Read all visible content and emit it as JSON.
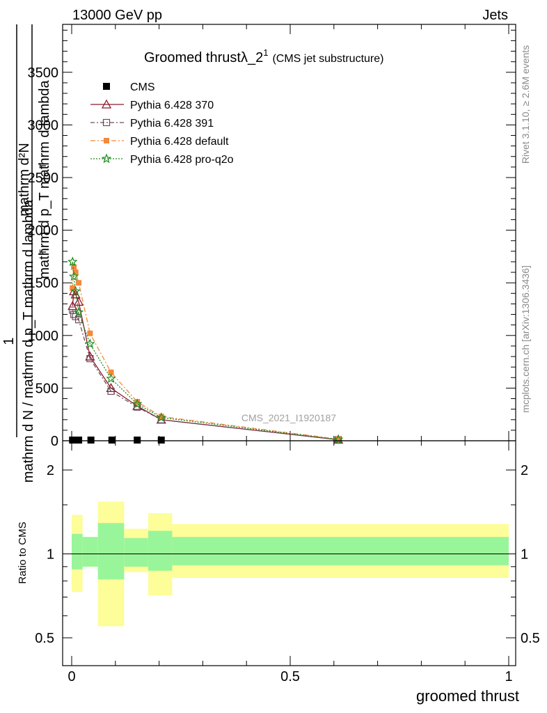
{
  "header": {
    "left": "13000 GeV pp",
    "right": "Jets"
  },
  "side_labels": {
    "rivet": "Rivet 3.1.10, ≥ 2.6M events",
    "mcplots": "mcplots.cern.ch [arXiv:1306.3436]"
  },
  "colors": {
    "cms": "#000000",
    "p370": "#8b1a2b",
    "p391": "#6e4a5a",
    "pdefault": "#f5883a",
    "pq2o": "#1e8c1e",
    "band_inner": "#99f599",
    "band_outer": "#fdfd99",
    "watermark": "#a0a0a0"
  },
  "chart_data": [
    {
      "type": "line",
      "title_main": "Groomed thrustλ_2",
      "title_sup": "1",
      "title_sub": "(CMS jet substructure)",
      "watermark": "CMS_2021_I1920187",
      "ylabel_numer": "mathrm d²N",
      "ylabel_denom": "mathrm d p_T mathrm d lambda",
      "ylabel_a": "mathrm d N / mathrm d p_T mathrm d lambda",
      "ylabel_b": "1",
      "ylabel_sub": "T",
      "ylabel_extra": "mathrm d p_T mathrm d lambda",
      "xlim": [
        0,
        1
      ],
      "ylim": [
        0,
        3900
      ],
      "yticks": [
        0,
        500,
        1000,
        1500,
        2000,
        2500,
        3000,
        3500
      ],
      "ytick_labels": [
        "0",
        "500",
        "1000",
        "1500",
        "2000",
        "2500",
        "3000",
        "3500"
      ],
      "series": [
        {
          "name": "CMS",
          "key": "cms",
          "marker": "square",
          "x": [
            0.002,
            0.008,
            0.016,
            0.044,
            0.092,
            0.15,
            0.205
          ],
          "y": [
            0,
            0,
            0,
            0,
            0,
            0,
            0
          ]
        },
        {
          "name": "Pythia 6.428 370",
          "key": "p370",
          "marker": "triangle",
          "x": [
            0.002,
            0.005,
            0.009,
            0.016,
            0.042,
            0.09,
            0.15,
            0.205,
            0.61
          ],
          "y": [
            1280,
            1420,
            1390,
            1320,
            800,
            500,
            330,
            200,
            10
          ]
        },
        {
          "name": "Pythia 6.428 391",
          "key": "p391",
          "marker": "square-open",
          "x": [
            0.002,
            0.005,
            0.009,
            0.016,
            0.042,
            0.09,
            0.15,
            0.205,
            0.61
          ],
          "y": [
            1240,
            1200,
            1180,
            1150,
            780,
            470,
            320,
            200,
            10
          ]
        },
        {
          "name": "Pythia 6.428 default",
          "key": "pdefault",
          "marker": "square-filled",
          "x": [
            0.002,
            0.005,
            0.009,
            0.016,
            0.042,
            0.09,
            0.15,
            0.205,
            0.61
          ],
          "y": [
            1450,
            1650,
            1600,
            1500,
            1020,
            650,
            370,
            230,
            15
          ]
        },
        {
          "name": "Pythia 6.428 pro-q2o",
          "key": "pq2o",
          "marker": "star",
          "x": [
            0.002,
            0.005,
            0.009,
            0.016,
            0.042,
            0.09,
            0.15,
            0.205,
            0.61
          ],
          "y": [
            1700,
            1560,
            1420,
            1220,
            920,
            590,
            350,
            220,
            12
          ]
        }
      ]
    },
    {
      "type": "area",
      "ylabel": "Ratio to CMS",
      "xlabel": "groomed thrust",
      "xlim": [
        0,
        1
      ],
      "ylim": [
        0.4,
        2.3
      ],
      "xtick_labels": [
        "0",
        "0.5",
        "1"
      ],
      "xticks": [
        0,
        0.5,
        1
      ],
      "ytick_labels": [
        "0.5",
        "1",
        "2"
      ],
      "yticks": [
        0.5,
        1,
        2
      ],
      "reference": 1,
      "bins": [
        {
          "x0": 0.0,
          "x1": 0.025,
          "inner": [
            0.88,
            1.18
          ],
          "outer": [
            0.73,
            1.38
          ]
        },
        {
          "x0": 0.025,
          "x1": 0.06,
          "inner": [
            0.9,
            1.15
          ],
          "outer": [
            0.9,
            1.15
          ]
        },
        {
          "x0": 0.06,
          "x1": 0.12,
          "inner": [
            0.81,
            1.29
          ],
          "outer": [
            0.55,
            1.54
          ]
        },
        {
          "x0": 0.12,
          "x1": 0.175,
          "inner": [
            0.9,
            1.14
          ],
          "outer": [
            0.86,
            1.23
          ]
        },
        {
          "x0": 0.175,
          "x1": 0.23,
          "inner": [
            0.87,
            1.21
          ],
          "outer": [
            0.71,
            1.4
          ]
        },
        {
          "x0": 0.23,
          "x1": 1.0,
          "inner": [
            0.91,
            1.15
          ],
          "outer": [
            0.82,
            1.28
          ]
        }
      ]
    }
  ]
}
